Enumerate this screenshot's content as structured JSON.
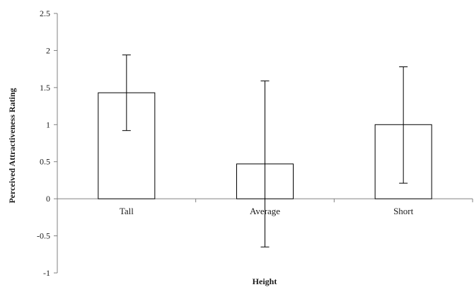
{
  "chart_data": {
    "type": "bar",
    "title": "",
    "xlabel": "Height",
    "ylabel": "Perceived Attractiveness Rating",
    "categories": [
      "Tall",
      "Average",
      "Short"
    ],
    "values": [
      1.43,
      0.47,
      1.0
    ],
    "error_bars": {
      "upper": [
        1.94,
        1.59,
        1.78
      ],
      "lower": [
        0.92,
        -0.65,
        0.21
      ]
    },
    "ylim": [
      -1,
      2.5
    ],
    "yticks": [
      "-1",
      "-0.5",
      "0",
      "0.5",
      "1",
      "1.5",
      "2",
      "2.5"
    ],
    "grid": false,
    "legend": "none",
    "colors": {
      "bar_fill": "#ffffff",
      "bar_stroke": "#000000",
      "axis": "#808080",
      "error_bar": "#000000"
    }
  }
}
